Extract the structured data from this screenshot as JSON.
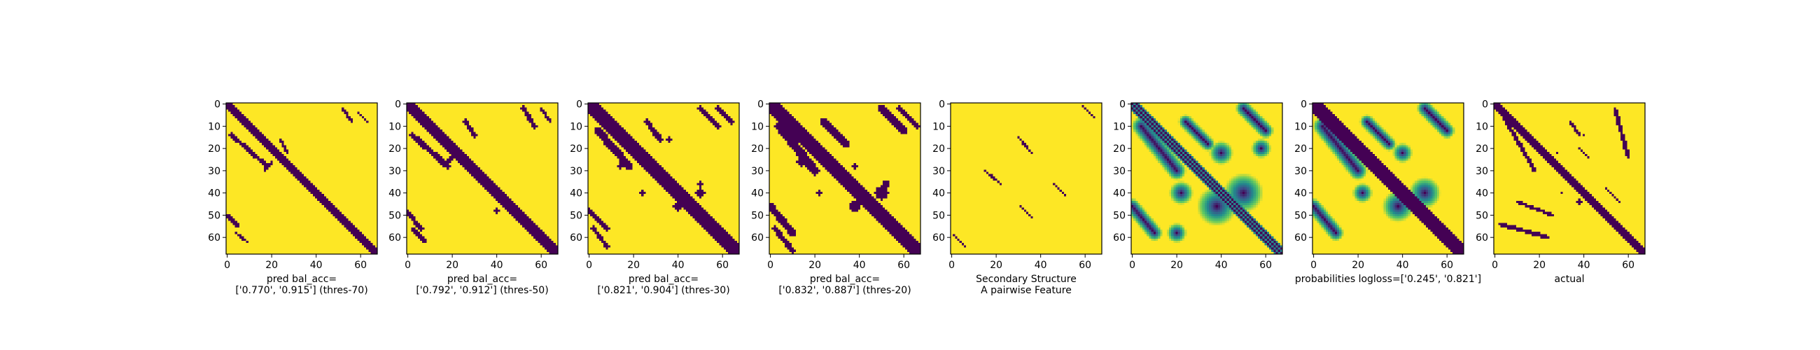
{
  "chart_data": [
    {
      "type": "heatmap",
      "title": "",
      "xlabel_lines": [
        "pred bal_acc=",
        "['0.770', '0.915'] (thres-70)"
      ],
      "xticks": [
        "0",
        "20",
        "40",
        "60"
      ],
      "yticks": [
        "0",
        "10",
        "20",
        "30",
        "40",
        "50",
        "60"
      ],
      "matrix_size": 68,
      "colormap": "binary-viridis",
      "colors": {
        "low": "#440154",
        "high": "#fde725"
      },
      "diagonal_halfwidth": 2,
      "features": [
        {
          "kind": "anti",
          "from": [
            14,
            2
          ],
          "to": [
            28,
            18
          ],
          "halfwidth": 1.0
        },
        {
          "kind": "anti",
          "from": [
            16,
            24
          ],
          "to": [
            22,
            27
          ],
          "halfwidth": 0.6
        },
        {
          "kind": "anti",
          "from": [
            26,
            20
          ],
          "to": [
            30,
            17
          ],
          "halfwidth": 0.6
        },
        {
          "kind": "anti",
          "from": [
            2,
            52
          ],
          "to": [
            8,
            56
          ],
          "halfwidth": 0.8
        },
        {
          "kind": "anti",
          "from": [
            4,
            59
          ],
          "to": [
            8,
            63
          ],
          "halfwidth": 0.6
        },
        {
          "kind": "anti",
          "from": [
            50,
            0
          ],
          "to": [
            55,
            5
          ],
          "halfwidth": 0.8
        },
        {
          "kind": "anti",
          "from": [
            58,
            4
          ],
          "to": [
            62,
            9
          ],
          "halfwidth": 0.6
        }
      ]
    },
    {
      "type": "heatmap",
      "title": "",
      "xlabel_lines": [
        "pred bal_acc=",
        "['0.792', '0.912'] (thres-50)"
      ],
      "xticks": [
        "0",
        "20",
        "40",
        "60"
      ],
      "yticks": [
        "0",
        "10",
        "20",
        "30",
        "40",
        "50",
        "60"
      ],
      "matrix_size": 68,
      "colormap": "binary-viridis",
      "colors": {
        "low": "#440154",
        "high": "#fde725"
      },
      "diagonal_halfwidth": 2.5,
      "features": [
        {
          "kind": "anti",
          "from": [
            14,
            2
          ],
          "to": [
            28,
            18
          ],
          "halfwidth": 1.3
        },
        {
          "kind": "anti",
          "from": [
            8,
            26
          ],
          "to": [
            14,
            30
          ],
          "halfwidth": 1.0
        },
        {
          "kind": "anti",
          "from": [
            22,
            22
          ],
          "to": [
            28,
            16
          ],
          "halfwidth": 0.8
        },
        {
          "kind": "anti",
          "from": [
            2,
            52
          ],
          "to": [
            10,
            57
          ],
          "halfwidth": 1.0
        },
        {
          "kind": "anti",
          "from": [
            2,
            60
          ],
          "to": [
            8,
            64
          ],
          "halfwidth": 0.8
        },
        {
          "kind": "anti",
          "from": [
            49,
            0
          ],
          "to": [
            56,
            6
          ],
          "halfwidth": 1.0
        },
        {
          "kind": "anti",
          "from": [
            56,
            2
          ],
          "to": [
            62,
            8
          ],
          "halfwidth": 0.8
        },
        {
          "kind": "blob",
          "center": [
            44,
            46
          ],
          "radius": 1.2
        },
        {
          "kind": "blob",
          "center": [
            48,
            40
          ],
          "radius": 1.0
        }
      ]
    },
    {
      "type": "heatmap",
      "title": "",
      "xlabel_lines": [
        "pred bal_acc=",
        "['0.821', '0.904'] (thres-30)"
      ],
      "xticks": [
        "0",
        "20",
        "40",
        "60"
      ],
      "yticks": [
        "0",
        "10",
        "20",
        "30",
        "40",
        "50",
        "60"
      ],
      "matrix_size": 68,
      "colormap": "binary-viridis",
      "colors": {
        "low": "#440154",
        "high": "#fde725"
      },
      "diagonal_halfwidth": 3,
      "features": [
        {
          "kind": "anti",
          "from": [
            12,
            4
          ],
          "to": [
            28,
            18
          ],
          "halfwidth": 1.7
        },
        {
          "kind": "anti",
          "from": [
            8,
            26
          ],
          "to": [
            16,
            32
          ],
          "halfwidth": 1.2
        },
        {
          "kind": "anti",
          "from": [
            2,
            50
          ],
          "to": [
            10,
            58
          ],
          "halfwidth": 1.3
        },
        {
          "kind": "anti",
          "from": [
            2,
            58
          ],
          "to": [
            8,
            64
          ],
          "halfwidth": 1.0
        },
        {
          "kind": "anti",
          "from": [
            48,
            0
          ],
          "to": [
            56,
            8
          ],
          "halfwidth": 1.3
        },
        {
          "kind": "anti",
          "from": [
            56,
            2
          ],
          "to": [
            64,
            8
          ],
          "halfwidth": 1.0
        },
        {
          "kind": "blob",
          "center": [
            28,
            14
          ],
          "radius": 1.2
        },
        {
          "kind": "blob",
          "center": [
            40,
            50
          ],
          "radius": 2.0
        },
        {
          "kind": "blob",
          "center": [
            46,
            40
          ],
          "radius": 2.2
        },
        {
          "kind": "blob",
          "center": [
            36,
            50
          ],
          "radius": 1.2
        },
        {
          "kind": "blob",
          "center": [
            40,
            24
          ],
          "radius": 1.0
        },
        {
          "kind": "blob",
          "center": [
            16,
            36
          ],
          "radius": 1.0
        }
      ]
    },
    {
      "type": "heatmap",
      "title": "",
      "xlabel_lines": [
        "pred bal_acc=",
        "['0.832', '0.887'] (thres-20)"
      ],
      "xticks": [
        "0",
        "20",
        "40",
        "60"
      ],
      "yticks": [
        "0",
        "10",
        "20",
        "30",
        "40",
        "50",
        "60"
      ],
      "matrix_size": 68,
      "colormap": "binary-viridis",
      "colors": {
        "low": "#440154",
        "high": "#fde725"
      },
      "diagonal_halfwidth": 3.5,
      "features": [
        {
          "kind": "anti",
          "from": [
            10,
            4
          ],
          "to": [
            30,
            20
          ],
          "halfwidth": 2.0
        },
        {
          "kind": "anti",
          "from": [
            8,
            24
          ],
          "to": [
            18,
            34
          ],
          "halfwidth": 1.5
        },
        {
          "kind": "anti",
          "from": [
            2,
            50
          ],
          "to": [
            12,
            60
          ],
          "halfwidth": 1.6
        },
        {
          "kind": "anti",
          "from": [
            2,
            58
          ],
          "to": [
            10,
            66
          ],
          "halfwidth": 1.2
        },
        {
          "kind": "anti",
          "from": [
            46,
            0
          ],
          "to": [
            58,
            10
          ],
          "halfwidth": 1.6
        },
        {
          "kind": "anti",
          "from": [
            56,
            2
          ],
          "to": [
            66,
            10
          ],
          "halfwidth": 1.2
        },
        {
          "kind": "blob",
          "center": [
            26,
            14
          ],
          "radius": 2.0
        },
        {
          "kind": "blob",
          "center": [
            40,
            50
          ],
          "radius": 3.0
        },
        {
          "kind": "blob",
          "center": [
            46,
            38
          ],
          "radius": 2.6
        },
        {
          "kind": "blob",
          "center": [
            36,
            52
          ],
          "radius": 1.8
        },
        {
          "kind": "blob",
          "center": [
            40,
            22
          ],
          "radius": 1.4
        },
        {
          "kind": "blob",
          "center": [
            28,
            38
          ],
          "radius": 1.2
        }
      ]
    },
    {
      "type": "heatmap",
      "title": "",
      "xlabel_lines": [
        "Secondary Structure",
        "A pairwise Feature"
      ],
      "xticks": [
        "0",
        "20",
        "40",
        "60"
      ],
      "yticks": [
        "0",
        "10",
        "20",
        "30",
        "40",
        "50",
        "60"
      ],
      "matrix_size": 68,
      "colormap": "binary-viridis",
      "colors": {
        "low": "#440154",
        "high": "#fde725"
      },
      "diagonal_halfwidth": 0,
      "features": [
        {
          "kind": "anti",
          "from": [
            1,
            59
          ],
          "to": [
            6,
            64
          ],
          "halfwidth": 0.45
        },
        {
          "kind": "anti",
          "from": [
            15,
            30
          ],
          "to": [
            22,
            36
          ],
          "halfwidth": 0.45
        },
        {
          "kind": "anti",
          "from": [
            36,
            46
          ],
          "to": [
            41,
            51
          ],
          "halfwidth": 0.45
        },
        {
          "kind": "anti",
          "from": [
            46,
            31
          ],
          "to": [
            51,
            36
          ],
          "halfwidth": 0.45
        },
        {
          "kind": "anti",
          "from": [
            59,
            1
          ],
          "to": [
            64,
            6
          ],
          "halfwidth": 0.45
        },
        {
          "kind": "anti",
          "from": [
            30,
            15
          ],
          "to": [
            36,
            22
          ],
          "halfwidth": 0.45
        }
      ]
    },
    {
      "type": "heatmap",
      "title": "",
      "xlabel_lines": [],
      "xticks": [
        "0",
        "20",
        "40",
        "60"
      ],
      "yticks": [
        "0",
        "10",
        "20",
        "30",
        "40",
        "50",
        "60"
      ],
      "matrix_size": 68,
      "colormap": "viridis",
      "colors": {
        "low": "#440154",
        "mid": "#21918c",
        "high": "#fde725"
      },
      "diagonal_halfwidth": 0,
      "diagonal_stripes": true,
      "features": [
        {
          "kind": "anti",
          "from": [
            10,
            4
          ],
          "to": [
            30,
            20
          ],
          "halfwidth": 2.4
        },
        {
          "kind": "anti",
          "from": [
            8,
            24
          ],
          "to": [
            18,
            34
          ],
          "halfwidth": 1.8
        },
        {
          "kind": "anti",
          "from": [
            2,
            50
          ],
          "to": [
            12,
            60
          ],
          "halfwidth": 2.0
        },
        {
          "kind": "anti",
          "from": [
            46,
            0
          ],
          "to": [
            58,
            10
          ],
          "halfwidth": 2.0
        },
        {
          "kind": "blob",
          "center": [
            40,
            50
          ],
          "radius": 5.0
        },
        {
          "kind": "blob",
          "center": [
            46,
            38
          ],
          "radius": 5.0
        },
        {
          "kind": "blob",
          "center": [
            22,
            40
          ],
          "radius": 3.0
        },
        {
          "kind": "blob",
          "center": [
            40,
            22
          ],
          "radius": 3.0
        },
        {
          "kind": "blob",
          "center": [
            20,
            58
          ],
          "radius": 2.5
        },
        {
          "kind": "blob",
          "center": [
            58,
            20
          ],
          "radius": 2.5
        }
      ]
    },
    {
      "type": "heatmap",
      "title": "",
      "xlabel_lines": [
        "probabilities logloss=['0.245', '0.821']"
      ],
      "xticks": [
        "0",
        "20",
        "40",
        "60"
      ],
      "yticks": [
        "0",
        "10",
        "20",
        "30",
        "40",
        "50",
        "60"
      ],
      "matrix_size": 68,
      "colormap": "viridis",
      "colors": {
        "low": "#440154",
        "mid": "#21918c",
        "high": "#fde725"
      },
      "diagonal_halfwidth": 3.5,
      "features": [
        {
          "kind": "anti",
          "from": [
            10,
            4
          ],
          "to": [
            30,
            20
          ],
          "halfwidth": 2.4
        },
        {
          "kind": "anti",
          "from": [
            8,
            24
          ],
          "to": [
            18,
            34
          ],
          "halfwidth": 1.8
        },
        {
          "kind": "anti",
          "from": [
            2,
            50
          ],
          "to": [
            12,
            60
          ],
          "halfwidth": 2.0
        },
        {
          "kind": "anti",
          "from": [
            46,
            0
          ],
          "to": [
            58,
            10
          ],
          "halfwidth": 2.0
        },
        {
          "kind": "blob",
          "center": [
            40,
            50
          ],
          "radius": 4.0
        },
        {
          "kind": "blob",
          "center": [
            46,
            38
          ],
          "radius": 4.0
        },
        {
          "kind": "blob",
          "center": [
            22,
            40
          ],
          "radius": 2.5
        },
        {
          "kind": "blob",
          "center": [
            40,
            22
          ],
          "radius": 2.5
        }
      ]
    },
    {
      "type": "heatmap",
      "title": "",
      "xlabel_lines": [
        "actual"
      ],
      "xticks": [
        "0",
        "20",
        "40",
        "60"
      ],
      "yticks": [
        "0",
        "10",
        "20",
        "30",
        "40",
        "50",
        "60"
      ],
      "matrix_size": 68,
      "colormap": "binary-viridis",
      "colors": {
        "low": "#440154",
        "high": "#fde725"
      },
      "diagonal_halfwidth": 2,
      "features": [
        {
          "kind": "anti",
          "from": [
            6,
            4
          ],
          "to": [
            30,
            18
          ],
          "halfwidth": 0.9
        },
        {
          "kind": "anti",
          "from": [
            8,
            34
          ],
          "to": [
            14,
            38
          ],
          "halfwidth": 0.8
        },
        {
          "kind": "anti",
          "from": [
            20,
            38
          ],
          "to": [
            24,
            42
          ],
          "halfwidth": 0.6
        },
        {
          "kind": "anti",
          "from": [
            2,
            54
          ],
          "to": [
            24,
            60
          ],
          "halfwidth": 0.9
        },
        {
          "kind": "anti",
          "from": [
            54,
            2
          ],
          "to": [
            60,
            24
          ],
          "halfwidth": 0.9
        },
        {
          "kind": "anti",
          "from": [
            44,
            10
          ],
          "to": [
            50,
            26
          ],
          "halfwidth": 0.8
        },
        {
          "kind": "anti",
          "from": [
            38,
            50
          ],
          "to": [
            44,
            56
          ],
          "halfwidth": 0.6
        },
        {
          "kind": "blob",
          "center": [
            44,
            38
          ],
          "radius": 1.0
        },
        {
          "kind": "blob",
          "center": [
            40,
            30
          ],
          "radius": 0.8
        },
        {
          "kind": "blob",
          "center": [
            22,
            28
          ],
          "radius": 0.8
        },
        {
          "kind": "blob",
          "center": [
            14,
            40
          ],
          "radius": 0.8
        }
      ]
    }
  ]
}
